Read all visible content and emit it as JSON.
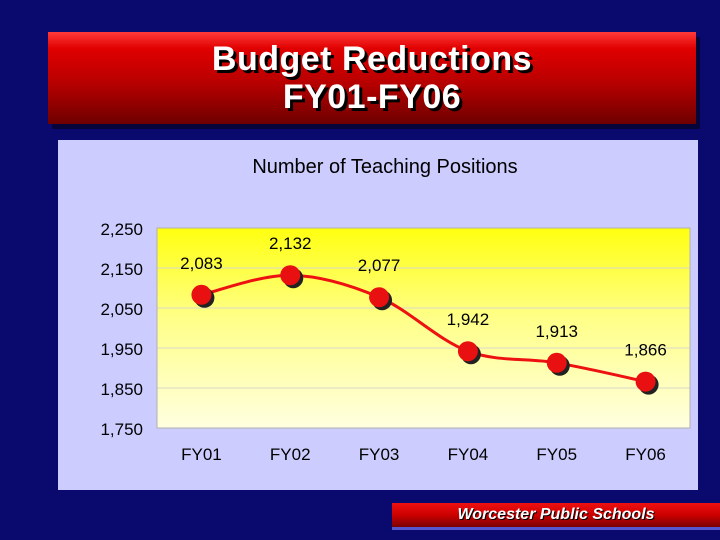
{
  "slide": {
    "title_line1": "Budget Reductions",
    "title_line2": "FY01-FY06",
    "footer": "Worcester Public Schools"
  },
  "colors": {
    "background": "#0a0a6e",
    "title_banner": "#cc0000",
    "chart_panel": "#ccccff",
    "plot_top": "#ffff00",
    "plot_bottom": "#ffffdd",
    "line": "#ee1111",
    "marker": "#e81010"
  },
  "chart_data": {
    "type": "line",
    "title": "Number of Teaching Positions",
    "categories": [
      "FY01",
      "FY02",
      "FY03",
      "FY04",
      "FY05",
      "FY06"
    ],
    "values": [
      2083,
      2132,
      2077,
      1942,
      1913,
      1866
    ],
    "data_labels": [
      "2,083",
      "2,132",
      "2,077",
      "1,942",
      "1,913",
      "1,866"
    ],
    "ylim": [
      1750,
      2250
    ],
    "yticks": [
      1750,
      1850,
      1950,
      2050,
      2150,
      2250
    ],
    "ytick_labels": [
      "1,750",
      "1,850",
      "1,950",
      "2,050",
      "2,150",
      "2,250"
    ],
    "xlabel": "",
    "ylabel": "",
    "grid": true,
    "legend": "none",
    "smooth": true
  }
}
